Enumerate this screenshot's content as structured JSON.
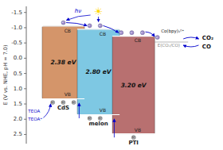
{
  "chart_data": {
    "type": "range_bar",
    "ylabel": "E (V vs. NHE, pH = 7.0)",
    "categories": [
      "CdS",
      "melon",
      "PTI"
    ],
    "series": [
      {
        "name": "CB",
        "values": [
          -1.05,
          -0.95,
          -0.72
        ]
      },
      {
        "name": "VB",
        "values": [
          1.33,
          1.85,
          2.48
        ]
      }
    ],
    "gaps": {
      "values": [
        2.38,
        2.8,
        3.2
      ],
      "value_labels": [
        "2.38 eV",
        "2.80 eV",
        "3.20 eV"
      ]
    },
    "colors": [
      "#d4956a",
      "#7ec8e3",
      "#b87070"
    ],
    "ylim": [
      2.8,
      -1.7
    ],
    "yticks": [
      {
        "value": -1.5,
        "label": "-1.5"
      },
      {
        "value": -1.0,
        "label": "-1.0"
      },
      {
        "value": -0.5,
        "label": "-0.5"
      },
      {
        "value": 0.0,
        "label": "0.0"
      },
      {
        "value": 0.5,
        "label": "0.5"
      },
      {
        "value": 1.0,
        "label": "1.0"
      },
      {
        "value": 1.5,
        "label": "1.5"
      },
      {
        "value": 2.0,
        "label": "2.0"
      },
      {
        "value": 2.5,
        "label": "2.5"
      }
    ],
    "grid": false,
    "annotations": [
      {
        "text": "E(CO₂/CO)",
        "value": -0.53
      },
      {
        "text": "TEOA"
      },
      {
        "text": "TEOA⁺"
      },
      {
        "text": "Co(bpy)₃²⁺"
      },
      {
        "text": "CO₂"
      },
      {
        "text": "CO"
      },
      {
        "text": "hν"
      },
      {
        "text": "☀"
      },
      {
        "text": "e⁻"
      },
      {
        "text": "h⁺"
      }
    ]
  }
}
